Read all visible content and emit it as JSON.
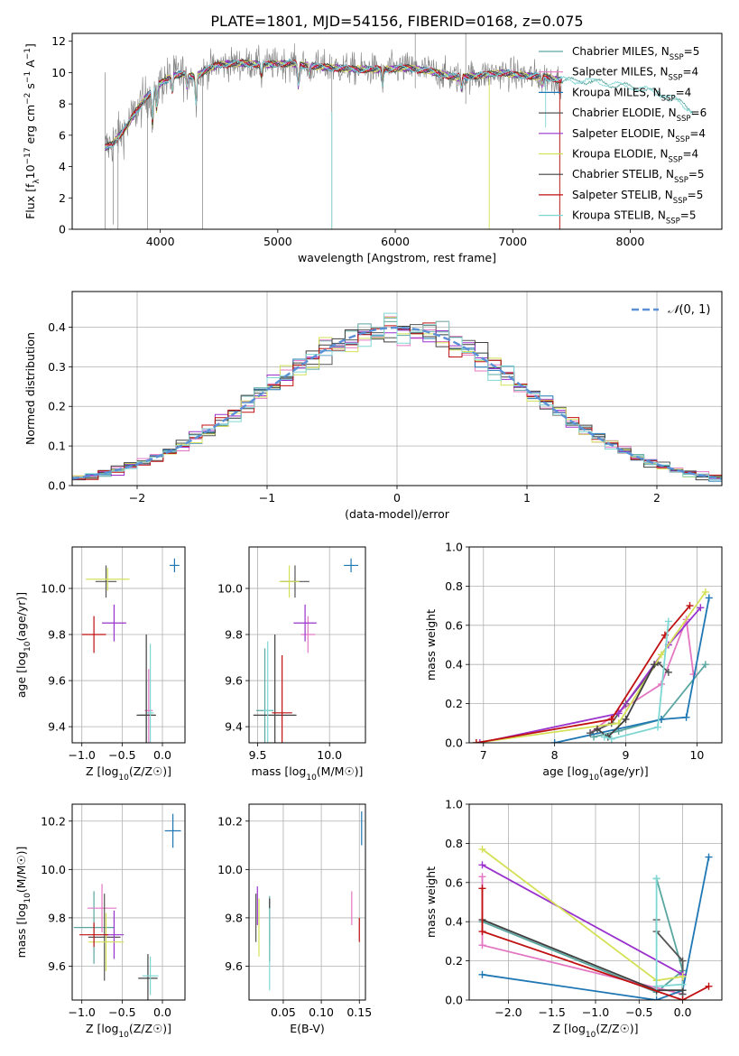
{
  "figure_title": "PLATE=1801, MJD=54156, FIBERID=0168, z=0.075",
  "colors": {
    "data": "#808080",
    "chabrier_miles": "#5aa7a1",
    "salpeter_miles": "#e377c2",
    "kroupa_miles": "#1f77b4",
    "chabrier_elodie": "#555555",
    "salpeter_elodie": "#9a32cd",
    "kroupa_elodie": "#d4e157",
    "chabrier_stelib": "#404040",
    "salpeter_stelib": "#c01010",
    "kroupa_stelib": "#7fd7d4",
    "normal": "#5b8fd6",
    "grid": "#b0b0b0"
  },
  "chart_data": [
    {
      "id": "spectrum",
      "type": "line",
      "xlabel": "wavelength [Angstrom, rest frame]",
      "ylabel": "Flux [fλ10⁻¹⁷ erg cm⁻² s⁻¹ A⁻¹]",
      "xlim": [
        3250,
        8780
      ],
      "ylim": [
        0,
        12.5
      ],
      "xticks": [
        4000,
        5000,
        6000,
        7000,
        8000
      ],
      "yticks": [
        0,
        2,
        4,
        6,
        8,
        10,
        12
      ],
      "grid": false,
      "legend_position": "top-right",
      "series": [
        {
          "name": "Chabrier MILES, N_SSP=5",
          "label_main": "Chabrier MILES, N",
          "label_tail": "=5"
        },
        {
          "name": "Salpeter MILES, N_SSP=4",
          "label_main": "Salpeter MILES, N",
          "label_tail": "=4"
        },
        {
          "name": "Kroupa MILES, N_SSP=4",
          "label_main": "Kroupa MILES, N",
          "label_tail": "=4"
        },
        {
          "name": "Chabrier ELODIE, N_SSP=6",
          "label_main": "Chabrier ELODIE, N",
          "label_tail": "=6"
        },
        {
          "name": "Salpeter ELODIE, N_SSP=4",
          "label_main": "Salpeter ELODIE, N",
          "label_tail": "=4"
        },
        {
          "name": "Kroupa ELODIE, N_SSP=4",
          "label_main": "Kroupa ELODIE, N",
          "label_tail": "=4"
        },
        {
          "name": "Chabrier STELIB, N_SSP=5",
          "label_main": "Chabrier STELIB, N",
          "label_tail": "=5"
        },
        {
          "name": "Salpeter STELIB, N_SSP=5",
          "label_main": "Salpeter STELIB, N",
          "label_tail": "=5"
        },
        {
          "name": "Kroupa STELIB, N_SSP=5",
          "label_main": "Kroupa STELIB, N",
          "label_tail": "=5"
        }
      ],
      "continuum_anchors": {
        "x": [
          3530,
          3600,
          3700,
          3800,
          3900,
          3950,
          4000,
          4100,
          4200,
          4300,
          4400,
          4500,
          4700,
          4900,
          5100,
          5300,
          5500,
          5700,
          5900,
          6100,
          6300,
          6500,
          6700,
          6900,
          7100,
          7300,
          7400,
          7600,
          7800,
          8000,
          8200,
          8400,
          8540
        ],
        "y": [
          5.2,
          5.5,
          6.4,
          7.6,
          8.6,
          9.0,
          9.3,
          9.8,
          9.9,
          9.7,
          10.2,
          10.5,
          10.6,
          10.5,
          10.6,
          10.4,
          10.3,
          10.2,
          10.2,
          10.3,
          10.1,
          9.7,
          9.8,
          10.0,
          9.8,
          9.7,
          9.5,
          9.5,
          9.3,
          9.1,
          8.8,
          8.2,
          7.5
        ]
      },
      "absorption_lines": [
        {
          "x": 3934,
          "depth": 2.2
        },
        {
          "x": 3968,
          "depth": 1.5
        },
        {
          "x": 4102,
          "depth": 1.0
        },
        {
          "x": 4227,
          "depth": 0.8
        },
        {
          "x": 4304,
          "depth": 1.6
        },
        {
          "x": 4861,
          "depth": 0.8
        },
        {
          "x": 5175,
          "depth": 1.4
        },
        {
          "x": 5270,
          "depth": 0.6
        },
        {
          "x": 5892,
          "depth": 1.0
        },
        {
          "x": 6563,
          "depth": 0.8
        },
        {
          "x": 7250,
          "depth": 0.5
        }
      ],
      "spikes": [
        {
          "x": 3530,
          "lo": 0,
          "hi": 10,
          "kind": "data"
        },
        {
          "x": 3600,
          "lo": 0.3,
          "hi": 6.5,
          "kind": "data"
        },
        {
          "x": 3640,
          "lo": 0,
          "hi": 7,
          "kind": "data"
        },
        {
          "x": 3890,
          "lo": 0,
          "hi": 9,
          "kind": "data"
        },
        {
          "x": 4360,
          "lo": 0,
          "hi": 10,
          "kind": "data"
        },
        {
          "x": 5460,
          "lo": 0,
          "hi": 11,
          "kind": "data"
        },
        {
          "x": 5460,
          "lo": 0,
          "hi": 7.5,
          "kind": "model",
          "series": 8
        },
        {
          "x": 6170,
          "lo": 9,
          "hi": 12.5,
          "kind": "data"
        },
        {
          "x": 6600,
          "lo": 8,
          "hi": 12.5,
          "kind": "data"
        },
        {
          "x": 6800,
          "lo": 0,
          "hi": 9.6,
          "kind": "model",
          "series": 5
        },
        {
          "x": 7280,
          "lo": 6.5,
          "hi": 9.6,
          "kind": "model",
          "series": 8
        },
        {
          "x": 7400,
          "lo": 0,
          "hi": 9.4,
          "kind": "data"
        },
        {
          "x": 7400,
          "lo": 0,
          "hi": 9.4,
          "kind": "model",
          "series": 7
        }
      ]
    },
    {
      "id": "residuals",
      "type": "histogram",
      "xlabel": "(data-model)/error",
      "ylabel": "Normed distribution",
      "xlim": [
        -2.5,
        2.5
      ],
      "ylim": [
        0,
        0.49
      ],
      "xticks": [
        -2,
        -1,
        0,
        1,
        2
      ],
      "yticks": [
        0.0,
        0.1,
        0.2,
        0.3,
        0.4
      ],
      "grid": true,
      "bin_width": 0.1,
      "legend_position": "top-right",
      "reference_curve": {
        "name": "N(0,1)",
        "mu": 0,
        "sigma": 1
      }
    },
    {
      "id": "age_vs_z",
      "type": "errorbar",
      "xlabel": "Z [log10(Z/Z☉)]",
      "ylabel": "age  [log10(age/yr)]",
      "xlim": [
        -1.12,
        0.28
      ],
      "ylim": [
        9.33,
        10.18
      ],
      "xticks": [
        -1.0,
        -0.5,
        0.0
      ],
      "yticks": [
        9.4,
        9.6,
        9.8,
        10.0
      ],
      "grid": true,
      "points": [
        {
          "series": 0,
          "x": -0.2,
          "y": 9.45,
          "xerr": 0.08,
          "yerr": 0.15
        },
        {
          "series": 1,
          "x": -0.17,
          "y": 9.47,
          "xerr": 0.05,
          "yerr": 0.18
        },
        {
          "series": 2,
          "x": 0.15,
          "y": 10.1,
          "xerr": 0.06,
          "yerr": 0.03
        },
        {
          "series": 3,
          "x": -0.7,
          "y": 10.03,
          "xerr": 0.13,
          "yerr": 0.07
        },
        {
          "series": 4,
          "x": -0.6,
          "y": 9.85,
          "xerr": 0.15,
          "yerr": 0.08
        },
        {
          "series": 5,
          "x": -0.68,
          "y": 10.04,
          "xerr": 0.27,
          "yerr": 0.05
        },
        {
          "series": 6,
          "x": -0.2,
          "y": 9.45,
          "xerr": 0.12,
          "yerr": 0.35
        },
        {
          "series": 7,
          "x": -0.85,
          "y": 9.8,
          "xerr": 0.15,
          "yerr": 0.08
        },
        {
          "series": 8,
          "x": -0.15,
          "y": 9.46,
          "xerr": 0.04,
          "yerr": 0.3
        }
      ]
    },
    {
      "id": "age_vs_mass",
      "type": "errorbar",
      "xlabel": "mass [log10(M/M☉)]",
      "ylabel": "",
      "xlim": [
        9.44,
        10.25
      ],
      "ylim": [
        9.33,
        10.18
      ],
      "xticks": [
        9.5,
        10.0
      ],
      "yticks": [
        9.4,
        9.6,
        9.8,
        10.0
      ],
      "grid": true,
      "points": [
        {
          "series": 0,
          "x": 9.55,
          "y": 9.47,
          "xerr": 0.06,
          "yerr": 0.27
        },
        {
          "series": 1,
          "x": 9.85,
          "y": 9.8,
          "xerr": 0.05,
          "yerr": 0.08
        },
        {
          "series": 2,
          "x": 10.15,
          "y": 10.1,
          "xerr": 0.05,
          "yerr": 0.03
        },
        {
          "series": 3,
          "x": 9.76,
          "y": 10.03,
          "xerr": 0.1,
          "yerr": 0.07
        },
        {
          "series": 4,
          "x": 9.83,
          "y": 9.85,
          "xerr": 0.08,
          "yerr": 0.08
        },
        {
          "series": 5,
          "x": 9.72,
          "y": 10.03,
          "xerr": 0.07,
          "yerr": 0.07
        },
        {
          "series": 6,
          "x": 9.62,
          "y": 9.45,
          "xerr": 0.15,
          "yerr": 0.35
        },
        {
          "series": 7,
          "x": 9.67,
          "y": 9.46,
          "xerr": 0.07,
          "yerr": 0.25
        },
        {
          "series": 8,
          "x": 9.57,
          "y": 9.47,
          "xerr": 0.03,
          "yerr": 0.3
        }
      ]
    },
    {
      "id": "mass_weight_vs_age",
      "type": "line",
      "xlabel": "age  [log10(age/yr)]",
      "ylabel": "mass weight",
      "xlim": [
        6.8,
        10.35
      ],
      "ylim": [
        0,
        1
      ],
      "xticks": [
        7,
        8,
        9,
        10
      ],
      "yticks": [
        0.0,
        0.2,
        0.4,
        0.6,
        0.8,
        1.0
      ],
      "grid": true,
      "series": [
        {
          "series": 0,
          "x": [
            8.55,
            8.9,
            9.5,
            10.12
          ],
          "y": [
            0.03,
            0.06,
            0.12,
            0.4
          ]
        },
        {
          "series": 1,
          "x": [
            8.5,
            8.9,
            9.5,
            9.85,
            9.95
          ],
          "y": [
            0.05,
            0.16,
            0.3,
            0.63,
            0.35
          ]
        },
        {
          "series": 2,
          "x": [
            8.0,
            9.5,
            9.85,
            10.17
          ],
          "y": [
            0.0,
            0.12,
            0.13,
            0.74
          ]
        },
        {
          "series": 3,
          "x": [
            8.5,
            8.8,
            9.0,
            9.45,
            9.6
          ],
          "y": [
            0.05,
            0.1,
            0.2,
            0.41,
            0.36
          ]
        },
        {
          "series": 4,
          "x": [
            6.95,
            8.9,
            9.6,
            10.05
          ],
          "y": [
            0.0,
            0.15,
            0.5,
            0.69
          ]
        },
        {
          "series": 5,
          "x": [
            6.9,
            8.9,
            9.5,
            10.12
          ],
          "y": [
            0.0,
            0.1,
            0.45,
            0.77
          ]
        },
        {
          "series": 6,
          "x": [
            8.6,
            8.75,
            9.0,
            9.4
          ],
          "y": [
            0.07,
            0.03,
            0.12,
            0.4
          ]
        },
        {
          "series": 7,
          "x": [
            6.9,
            8.8,
            9.55,
            9.9
          ],
          "y": [
            0.0,
            0.12,
            0.55,
            0.7
          ]
        },
        {
          "series": 8,
          "x": [
            8.7,
            8.8,
            9.45,
            9.6
          ],
          "y": [
            0.03,
            0.02,
            0.08,
            0.62
          ]
        }
      ]
    },
    {
      "id": "mass_vs_z",
      "type": "errorbar",
      "xlabel": "Z [log10(Z/Z☉)]",
      "ylabel": "mass [log10(M/M☉)]",
      "xlim": [
        -1.12,
        0.28
      ],
      "ylim": [
        9.46,
        10.27
      ],
      "xticks": [
        -1.0,
        -0.5,
        0.0
      ],
      "yticks": [
        9.6,
        9.8,
        10.0,
        10.2
      ],
      "grid": true,
      "points": [
        {
          "series": 0,
          "x": -0.85,
          "y": 9.76,
          "xerr": 0.25,
          "yerr": 0.15
        },
        {
          "series": 1,
          "x": -0.75,
          "y": 9.84,
          "xerr": 0.18,
          "yerr": 0.1
        },
        {
          "series": 2,
          "x": 0.13,
          "y": 10.16,
          "xerr": 0.1,
          "yerr": 0.07
        },
        {
          "series": 3,
          "x": -0.72,
          "y": 9.72,
          "xerr": 0.2,
          "yerr": 0.18
        },
        {
          "series": 4,
          "x": -0.6,
          "y": 9.73,
          "xerr": 0.12,
          "yerr": 0.1
        },
        {
          "series": 5,
          "x": -0.7,
          "y": 9.7,
          "xerr": 0.22,
          "yerr": 0.12
        },
        {
          "series": 6,
          "x": -0.18,
          "y": 9.55,
          "xerr": 0.12,
          "yerr": 0.1
        },
        {
          "series": 7,
          "x": -0.85,
          "y": 9.73,
          "xerr": 0.18,
          "yerr": 0.05
        },
        {
          "series": 8,
          "x": -0.15,
          "y": 9.56,
          "xerr": 0.1,
          "yerr": 0.08
        }
      ]
    },
    {
      "id": "mass_vs_ebv",
      "type": "errorbar",
      "xlabel": "E(B-V)",
      "ylabel": "",
      "xlim": [
        0.005,
        0.158
      ],
      "ylim": [
        9.46,
        10.27
      ],
      "xticks": [
        0.05,
        0.1,
        0.15
      ],
      "yticks": [
        9.6,
        9.8,
        10.0,
        10.2
      ],
      "grid": true,
      "points": [
        {
          "series": 0,
          "x": 0.032,
          "y": 9.79,
          "xerr": 0,
          "yerr": 0.1
        },
        {
          "series": 1,
          "x": 0.14,
          "y": 9.84,
          "xerr": 0,
          "yerr": 0.07
        },
        {
          "series": 2,
          "x": 0.153,
          "y": 10.17,
          "xerr": 0,
          "yerr": 0.07
        },
        {
          "series": 3,
          "x": 0.014,
          "y": 9.8,
          "xerr": 0,
          "yerr": 0.1
        },
        {
          "series": 4,
          "x": 0.016,
          "y": 9.85,
          "xerr": 0,
          "yerr": 0.08
        },
        {
          "series": 5,
          "x": 0.018,
          "y": 9.76,
          "xerr": 0,
          "yerr": 0.12
        },
        {
          "series": 6,
          "x": 0.032,
          "y": 9.75,
          "xerr": 0,
          "yerr": 0.13
        },
        {
          "series": 7,
          "x": 0.15,
          "y": 9.75,
          "xerr": 0,
          "yerr": 0.05
        },
        {
          "series": 8,
          "x": 0.032,
          "y": 9.67,
          "xerr": 0,
          "yerr": 0.17
        }
      ]
    },
    {
      "id": "mass_weight_vs_z",
      "type": "line",
      "xlabel": "Z [log10(Z/Z☉)]",
      "ylabel": "mass weight",
      "xlim": [
        -2.45,
        0.45
      ],
      "ylim": [
        0,
        1
      ],
      "xticks": [
        -2.0,
        -1.5,
        -1.0,
        -0.5,
        0.0
      ],
      "yticks": [
        0.0,
        0.2,
        0.4,
        0.6,
        0.8,
        1.0
      ],
      "grid": true,
      "series": [
        {
          "series": 0,
          "x": [
            -2.3,
            -0.3,
            0.0,
            -0.3
          ],
          "y": [
            0.4,
            0.04,
            0.15,
            0.62
          ]
        },
        {
          "series": 1,
          "x": [
            -2.3,
            -2.3,
            0.0
          ],
          "y": [
            0.63,
            0.28,
            0.03
          ]
        },
        {
          "series": 2,
          "x": [
            -2.3,
            -0.3,
            0.0,
            0.3
          ],
          "y": [
            0.13,
            0.0,
            0.05,
            0.73
          ]
        },
        {
          "series": 3,
          "x": [
            -0.3,
            -0.3,
            0.0,
            0.0
          ],
          "y": [
            0.41,
            0.35,
            0.2,
            0.03
          ]
        },
        {
          "series": 4,
          "x": [
            -2.3,
            0.0
          ],
          "y": [
            0.69,
            0.13
          ]
        },
        {
          "series": 5,
          "x": [
            -2.3,
            -0.3,
            0.0
          ],
          "y": [
            0.77,
            0.1,
            0.12
          ]
        },
        {
          "series": 6,
          "x": [
            -2.3,
            -0.3,
            0.0
          ],
          "y": [
            0.41,
            0.05,
            0.05
          ]
        },
        {
          "series": 7,
          "x": [
            -2.3,
            -2.3,
            0.0,
            0.3
          ],
          "y": [
            0.57,
            0.35,
            0.0,
            0.07
          ]
        },
        {
          "series": 8,
          "x": [
            -0.3,
            -0.3,
            0.0
          ],
          "y": [
            0.62,
            0.07,
            0.08
          ]
        }
      ]
    }
  ]
}
